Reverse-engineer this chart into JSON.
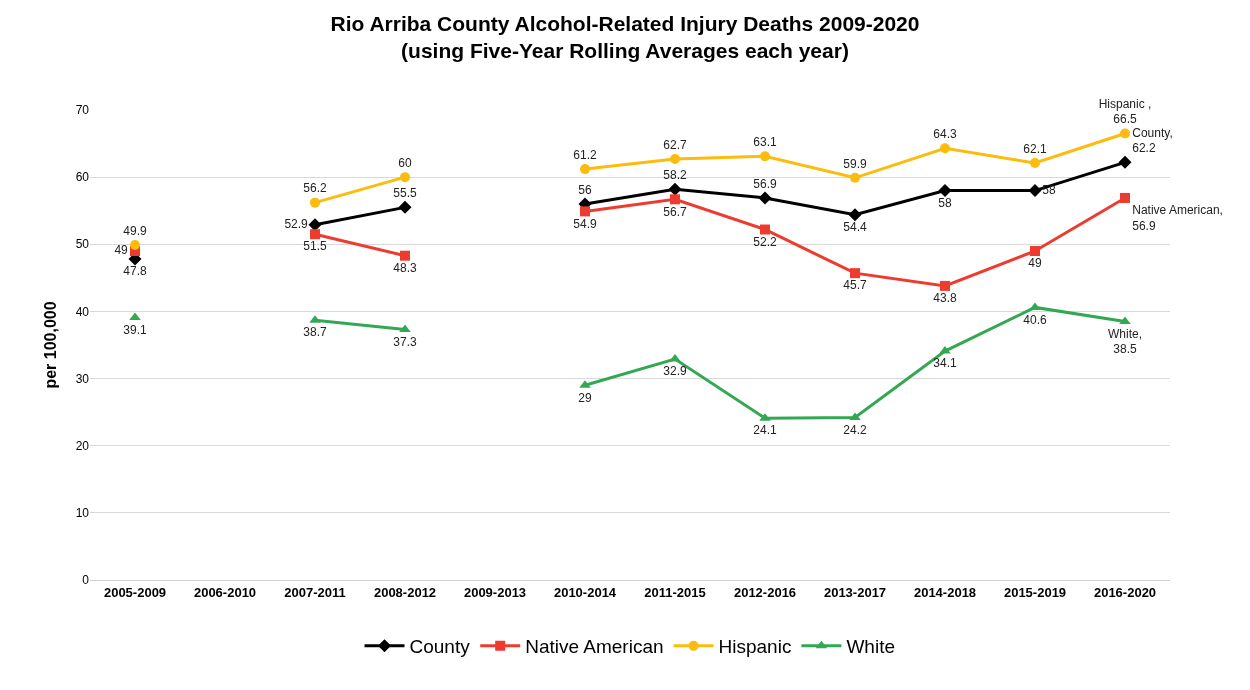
{
  "chart_data": {
    "type": "line",
    "title": "Rio Arriba County Alcohol-Related Injury Deaths 2009-2020\n(using Five-Year Rolling Averages each year)",
    "ylabel": "per 100,000",
    "categories": [
      "2005-2009",
      "2006-2010",
      "2007-2011",
      "2008-2012",
      "2009-2013",
      "2010-2014",
      "2011-2015",
      "2012-2016",
      "2013-2017",
      "2014-2018",
      "2015-2019",
      "2016-2020"
    ],
    "series": [
      {
        "name": "County",
        "color": "#000000",
        "marker": "diamond",
        "values": [
          47.8,
          null,
          52.9,
          55.5,
          null,
          56,
          58.2,
          56.9,
          54.4,
          58,
          58,
          62.2
        ],
        "value_labels": [
          "47.8",
          null,
          "52.9",
          "55.5",
          null,
          "56",
          "58.2",
          "56.9",
          "54.4",
          "58",
          "58",
          "County,\n62.2"
        ]
      },
      {
        "name": "Native American",
        "color": "#ee3b2f",
        "marker": "square",
        "values": [
          49,
          null,
          51.5,
          48.3,
          null,
          54.9,
          56.7,
          52.2,
          45.7,
          43.8,
          49,
          56.9
        ],
        "value_labels": [
          "49",
          null,
          "51.5",
          "48.3",
          null,
          "54.9",
          "56.7",
          "52.2",
          "45.7",
          "43.8",
          "49",
          "Native American,\n56.9"
        ]
      },
      {
        "name": "Hispanic",
        "color": "#fbbc0d",
        "marker": "circle",
        "values": [
          49.9,
          null,
          56.2,
          60,
          null,
          61.2,
          62.7,
          63.1,
          59.9,
          64.3,
          62.1,
          66.5
        ],
        "value_labels": [
          "49.9",
          null,
          "56.2",
          "60",
          null,
          "61.2",
          "62.7",
          "63.1",
          "59.9",
          "64.3",
          "62.1",
          "Hispanic ,\n66.5"
        ]
      },
      {
        "name": "White",
        "color": "#33a852",
        "marker": "triangle",
        "values": [
          39.1,
          null,
          38.7,
          37.3,
          null,
          29,
          32.9,
          24.1,
          24.2,
          34.1,
          40.6,
          38.5
        ],
        "value_labels": [
          "39.1",
          null,
          "38.7",
          "37.3",
          null,
          "29",
          "32.9",
          "24.1",
          "24.2",
          "34.1",
          "40.6",
          "White,\n38.5"
        ]
      }
    ],
    "ylim": [
      0,
      70
    ],
    "yticks": [
      0,
      10,
      20,
      30,
      40,
      50,
      60,
      70
    ],
    "grid": "y",
    "legend": "bottom",
    "line_style": "solid"
  }
}
